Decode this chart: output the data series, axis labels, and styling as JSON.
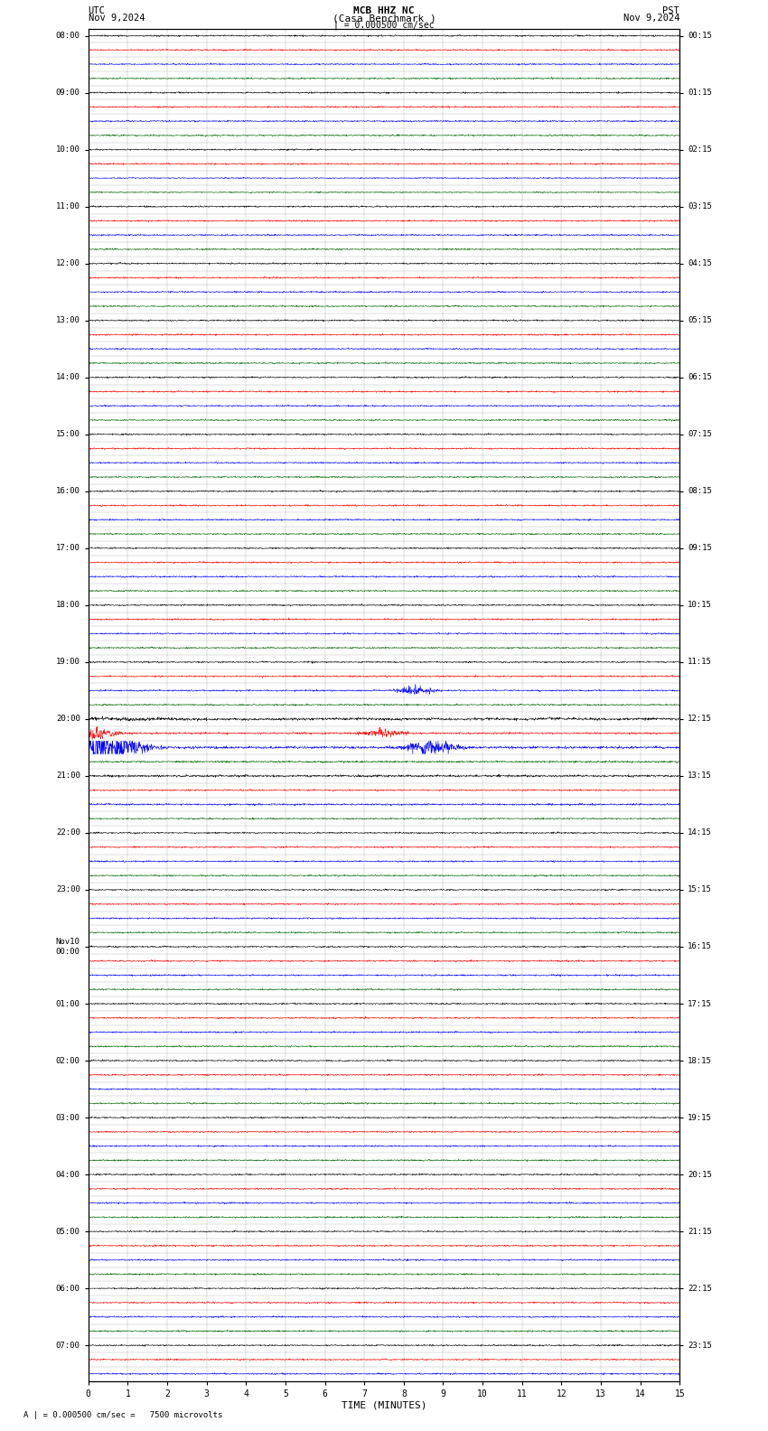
{
  "title_line1": "MCB HHZ NC",
  "title_line2": "(Casa Benchmark )",
  "title_scale": "| = 0.000500 cm/sec",
  "left_header": "UTC",
  "left_date": "Nov 9,2024",
  "right_header": "PST",
  "right_date": "Nov 9,2024",
  "footer": "A | = 0.000500 cm/sec =   7500 microvolts",
  "xlabel": "TIME (MINUTES)",
  "bg_color": "#ffffff",
  "trace_colors": [
    "black",
    "red",
    "blue",
    "darkgreen"
  ],
  "left_labels": [
    "08:00",
    "",
    "",
    "",
    "09:00",
    "",
    "",
    "",
    "10:00",
    "",
    "",
    "",
    "11:00",
    "",
    "",
    "",
    "12:00",
    "",
    "",
    "",
    "13:00",
    "",
    "",
    "",
    "14:00",
    "",
    "",
    "",
    "15:00",
    "",
    "",
    "",
    "16:00",
    "",
    "",
    "",
    "17:00",
    "",
    "",
    "",
    "18:00",
    "",
    "",
    "",
    "19:00",
    "",
    "",
    "",
    "20:00",
    "",
    "",
    "",
    "21:00",
    "",
    "",
    "",
    "22:00",
    "",
    "",
    "",
    "23:00",
    "",
    "",
    "",
    "Nov10\n00:00",
    "",
    "",
    "",
    "01:00",
    "",
    "",
    "",
    "02:00",
    "",
    "",
    "",
    "03:00",
    "",
    "",
    "",
    "04:00",
    "",
    "",
    "",
    "05:00",
    "",
    "",
    "",
    "06:00",
    "",
    "",
    "",
    "07:00",
    "",
    ""
  ],
  "right_labels": [
    "00:15",
    "",
    "",
    "",
    "01:15",
    "",
    "",
    "",
    "02:15",
    "",
    "",
    "",
    "03:15",
    "",
    "",
    "",
    "04:15",
    "",
    "",
    "",
    "05:15",
    "",
    "",
    "",
    "06:15",
    "",
    "",
    "",
    "07:15",
    "",
    "",
    "",
    "08:15",
    "",
    "",
    "",
    "09:15",
    "",
    "",
    "",
    "10:15",
    "",
    "",
    "",
    "11:15",
    "",
    "",
    "",
    "12:15",
    "",
    "",
    "",
    "13:15",
    "",
    "",
    "",
    "14:15",
    "",
    "",
    "",
    "15:15",
    "",
    "",
    "",
    "16:15",
    "",
    "",
    "",
    "17:15",
    "",
    "",
    "",
    "18:15",
    "",
    "",
    "",
    "19:15",
    "",
    "",
    "",
    "20:15",
    "",
    "",
    "",
    "21:15",
    "",
    "",
    "",
    "22:15",
    "",
    "",
    "",
    "23:15",
    "",
    ""
  ],
  "n_rows": 95,
  "traces_per_hour": 4,
  "xmin": 0,
  "xmax": 15,
  "base_noise": 0.025,
  "event_hour": 12
}
